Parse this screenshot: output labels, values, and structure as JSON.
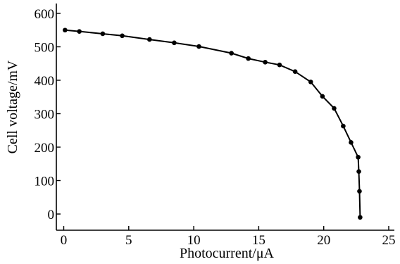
{
  "chart_data": {
    "type": "line",
    "xlabel": "Photocurrent/μA",
    "ylabel": "Cell voltage/mV",
    "xlim": [
      0,
      25
    ],
    "ylim": [
      -15,
      610
    ],
    "xticks": [
      0,
      5,
      10,
      15,
      20,
      25
    ],
    "yticks": [
      0,
      100,
      200,
      300,
      400,
      500,
      600
    ],
    "xtick_labels": [
      "0",
      "5",
      "10",
      "15",
      "20",
      "25"
    ],
    "ytick_labels": [
      "0",
      "100",
      "200",
      "300",
      "400",
      "500",
      "600"
    ],
    "grid": false,
    "series": [
      {
        "x": [
          0.1,
          1.2,
          3.0,
          4.5,
          6.6,
          8.5,
          10.4,
          12.9,
          14.2,
          15.5,
          16.6,
          17.8,
          19.0,
          19.9,
          20.8,
          21.5,
          22.1,
          22.65,
          22.7,
          22.75,
          22.8
        ],
        "y": [
          550,
          546,
          539,
          533,
          522,
          512,
          501,
          481,
          465,
          454,
          446,
          426,
          395,
          352,
          316,
          263,
          214,
          170,
          127,
          68,
          -10
        ]
      }
    ]
  }
}
